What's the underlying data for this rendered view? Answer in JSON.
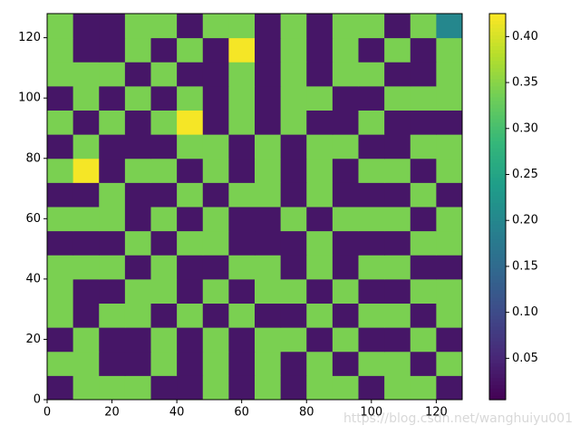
{
  "chart_data": {
    "type": "heatmap",
    "colormap": "viridis",
    "xlim": [
      0,
      128
    ],
    "ylim": [
      0,
      128
    ],
    "xticks": [
      0,
      20,
      40,
      60,
      80,
      100,
      120
    ],
    "yticks": [
      0,
      20,
      40,
      60,
      80,
      100,
      120
    ],
    "clim": [
      0.005,
      0.425
    ],
    "cticks": [
      0.05,
      {
        "value": 0.1,
        "label": "0.10"
      },
      0.15,
      {
        "value": 0.2,
        "label": "0.20"
      },
      0.25,
      {
        "value": 0.3,
        "label": "0.30"
      },
      0.35,
      {
        "value": 0.4,
        "label": "0.40"
      }
    ],
    "values": [
      [
        0.03,
        0.34,
        0.34,
        0.34,
        0.03,
        0.03,
        0.34,
        0.03,
        0.34,
        0.03,
        0.34,
        0.34,
        0.03,
        0.34,
        0.34,
        0.03
      ],
      [
        0.34,
        0.34,
        0.03,
        0.03,
        0.34,
        0.03,
        0.34,
        0.03,
        0.34,
        0.03,
        0.34,
        0.03,
        0.34,
        0.34,
        0.03,
        0.34
      ],
      [
        0.03,
        0.34,
        0.03,
        0.03,
        0.34,
        0.03,
        0.34,
        0.03,
        0.34,
        0.34,
        0.03,
        0.34,
        0.03,
        0.03,
        0.34,
        0.03
      ],
      [
        0.34,
        0.03,
        0.34,
        0.34,
        0.03,
        0.34,
        0.03,
        0.34,
        0.03,
        0.03,
        0.34,
        0.03,
        0.34,
        0.34,
        0.03,
        0.34
      ],
      [
        0.34,
        0.03,
        0.03,
        0.34,
        0.34,
        0.03,
        0.34,
        0.03,
        0.34,
        0.34,
        0.03,
        0.34,
        0.03,
        0.03,
        0.34,
        0.34
      ],
      [
        0.34,
        0.34,
        0.34,
        0.03,
        0.34,
        0.03,
        0.03,
        0.34,
        0.34,
        0.03,
        0.34,
        0.03,
        0.34,
        0.34,
        0.03,
        0.03
      ],
      [
        0.03,
        0.03,
        0.03,
        0.34,
        0.03,
        0.34,
        0.34,
        0.03,
        0.03,
        0.03,
        0.34,
        0.03,
        0.03,
        0.03,
        0.34,
        0.34
      ],
      [
        0.34,
        0.34,
        0.34,
        0.03,
        0.34,
        0.03,
        0.34,
        0.03,
        0.03,
        0.34,
        0.03,
        0.34,
        0.34,
        0.34,
        0.03,
        0.34
      ],
      [
        0.03,
        0.03,
        0.34,
        0.03,
        0.03,
        0.34,
        0.03,
        0.34,
        0.34,
        0.03,
        0.34,
        0.03,
        0.03,
        0.03,
        0.34,
        0.03
      ],
      [
        0.34,
        0.42,
        0.03,
        0.34,
        0.34,
        0.03,
        0.34,
        0.03,
        0.34,
        0.03,
        0.34,
        0.03,
        0.34,
        0.34,
        0.03,
        0.34
      ],
      [
        0.03,
        0.34,
        0.03,
        0.03,
        0.03,
        0.34,
        0.34,
        0.03,
        0.34,
        0.03,
        0.34,
        0.34,
        0.03,
        0.03,
        0.34,
        0.34
      ],
      [
        0.34,
        0.03,
        0.34,
        0.03,
        0.34,
        0.42,
        0.03,
        0.34,
        0.03,
        0.34,
        0.03,
        0.03,
        0.34,
        0.03,
        0.03,
        0.03
      ],
      [
        0.03,
        0.34,
        0.03,
        0.34,
        0.03,
        0.34,
        0.03,
        0.34,
        0.03,
        0.34,
        0.34,
        0.03,
        0.03,
        0.34,
        0.34,
        0.34
      ],
      [
        0.34,
        0.34,
        0.34,
        0.03,
        0.34,
        0.03,
        0.03,
        0.34,
        0.03,
        0.34,
        0.03,
        0.34,
        0.34,
        0.03,
        0.03,
        0.34
      ],
      [
        0.34,
        0.03,
        0.03,
        0.34,
        0.03,
        0.34,
        0.03,
        0.42,
        0.03,
        0.34,
        0.03,
        0.34,
        0.03,
        0.34,
        0.03,
        0.34
      ],
      [
        0.34,
        0.03,
        0.03,
        0.34,
        0.34,
        0.03,
        0.34,
        0.34,
        0.03,
        0.34,
        0.03,
        0.34,
        0.34,
        0.03,
        0.34,
        0.2
      ]
    ],
    "watermark": "https://blog.csdn.net/wanghuiyu001"
  }
}
